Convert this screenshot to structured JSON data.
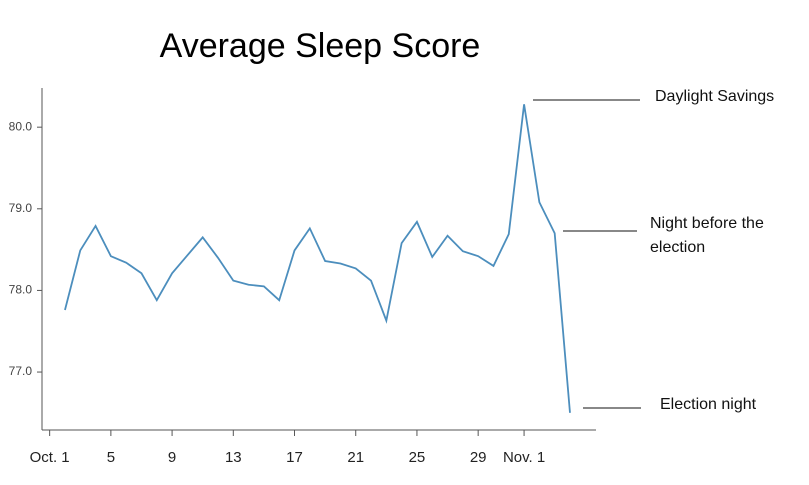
{
  "chart_data": {
    "type": "line",
    "title": "Average Sleep Score",
    "x": [
      2,
      3,
      4,
      5,
      6,
      7,
      8,
      9,
      10,
      11,
      12,
      13,
      14,
      15,
      16,
      17,
      18,
      19,
      20,
      21,
      22,
      23,
      24,
      25,
      26,
      27,
      28,
      29,
      30,
      31,
      32,
      33,
      34,
      35
    ],
    "series": [
      {
        "color": "#4c8ebd",
        "values": [
          77.76,
          78.49,
          78.79,
          78.42,
          78.34,
          78.21,
          77.88,
          78.21,
          78.43,
          78.65,
          78.4,
          78.12,
          78.07,
          78.05,
          77.88,
          78.49,
          78.76,
          78.36,
          78.33,
          78.27,
          78.12,
          77.63,
          78.58,
          78.84,
          78.41,
          78.67,
          78.48,
          78.42,
          78.3,
          78.69,
          80.28,
          79.08,
          78.7,
          76.5
        ]
      }
    ],
    "xlim": [
      0.5,
      36.7
    ],
    "xticks": [
      {
        "value": 1,
        "label": "Oct. 1"
      },
      5,
      9,
      13,
      17,
      21,
      25,
      29,
      {
        "value": 32,
        "label": "Nov. 1"
      }
    ],
    "ylim": [
      76.29,
      80.48
    ],
    "yticks": [
      {
        "value": 77,
        "label": "77.0"
      },
      {
        "value": 78,
        "label": "78.0"
      },
      {
        "value": 79,
        "label": "79.0"
      },
      {
        "value": 80,
        "label": "80.0"
      }
    ],
    "annotations": [
      {
        "lines": [
          "Daylight Savings"
        ]
      },
      {
        "lines": [
          "Night before the",
          "election"
        ]
      },
      {
        "lines": [
          "Election night"
        ]
      }
    ]
  }
}
